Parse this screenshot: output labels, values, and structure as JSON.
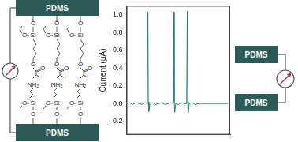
{
  "chart_data": {
    "type": "line",
    "x_title": null,
    "y_title": "Current (μA)",
    "xlim": [
      0,
      100
    ],
    "xticks": [],
    "ylim": [
      -0.35,
      1.1
    ],
    "yticks": [
      {
        "value": -0.2,
        "label": "-0.2"
      },
      {
        "value": 0,
        "label": "0.0"
      },
      0.2,
      0.4,
      0.6,
      0.8,
      {
        "value": 1,
        "label": "1.0"
      }
    ],
    "grid": false,
    "tick_labels": "y",
    "series": [
      {
        "color": "#2a7d74",
        "x": [
          0,
          3,
          6,
          9,
          12,
          15,
          18,
          20,
          20.6,
          21,
          21.5,
          22.5,
          25,
          28,
          31,
          34,
          37,
          40,
          43,
          45,
          45.6,
          46,
          46.5,
          47.5,
          50,
          53,
          56,
          58,
          58.6,
          59,
          59.5,
          60.5,
          63,
          66,
          70
        ],
        "values": [
          0,
          0.01,
          -0.01,
          0.01,
          0,
          -0.01,
          0.01,
          0,
          1.03,
          0.02,
          -0.09,
          0,
          0.01,
          -0.01,
          0,
          0.01,
          -0.01,
          0,
          0.01,
          0,
          1.03,
          0.02,
          -0.1,
          0,
          -0.01,
          0.01,
          0,
          0,
          1.04,
          0.02,
          -0.1,
          0,
          0.01,
          -0.01,
          0
        ]
      },
      {
        "color": "#b5354a",
        "x": [
          70,
          75,
          80,
          85,
          90,
          95,
          98
        ],
        "values": [
          0,
          0,
          0,
          0,
          0,
          0,
          0
        ]
      }
    ]
  },
  "diagram": {
    "left": {
      "top_block": "PDMS",
      "bottom_block": "PDMS",
      "repeat_units": 3,
      "top_unit": {
        "anchor": "O",
        "silicon": "Si",
        "side": "O",
        "ester_oxygen": "O",
        "carbonyl_oxygen": "O"
      },
      "bottom_unit": {
        "amine": "NH₂",
        "silicon": "Si",
        "side": "O",
        "anchor": "O"
      }
    },
    "right": {
      "top_block": "PDMS",
      "bottom_block": "PDMS"
    }
  }
}
